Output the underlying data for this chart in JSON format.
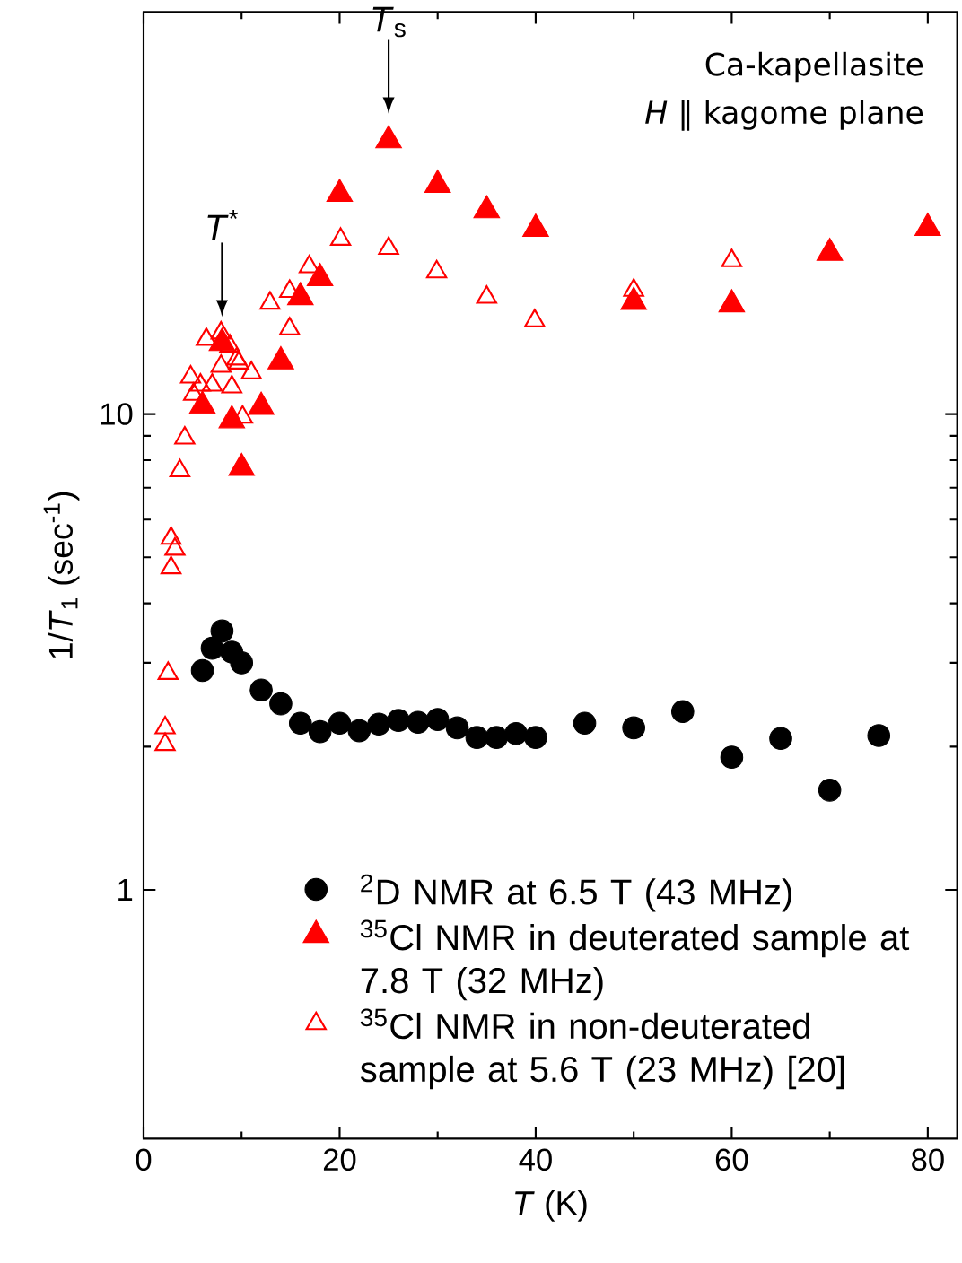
{
  "chart_data": {
    "type": "scatter",
    "xlabel": "*T*  (K)",
    "ylabel": "1/*T*$_{1}$  (sec$^{-1}$)",
    "xlim": [
      0,
      83
    ],
    "ylim": [
      0.3,
      70
    ],
    "xticks": [
      0,
      20,
      40,
      60,
      80
    ],
    "yticks": [
      1,
      10
    ],
    "log": "y",
    "legend": "bottom",
    "annotations": [
      {
        "text": "*T*$^{*}$",
        "x": 8,
        "y": 14.1
      },
      {
        "text": "*T*$_{s}$",
        "x": 25,
        "y": 37.6
      },
      "Ca-kapellasite",
      "*H* ‖ kagome plane"
    ],
    "series": [
      {
        "name": "$^{2}$D NMR at 6.5 T (43 MHz)",
        "color": "#000000",
        "marker": "circle",
        "x": [
          6,
          7,
          8,
          9,
          10,
          12,
          14,
          16,
          18,
          20,
          22,
          24,
          26,
          28,
          30,
          32,
          34,
          36,
          38,
          40,
          45,
          50,
          55,
          60,
          65,
          70,
          75
        ],
        "values": [
          2.89,
          3.22,
          3.5,
          3.16,
          3.0,
          2.63,
          2.46,
          2.24,
          2.15,
          2.24,
          2.16,
          2.23,
          2.27,
          2.25,
          2.28,
          2.19,
          2.09,
          2.09,
          2.13,
          2.09,
          2.24,
          2.19,
          2.37,
          1.9,
          2.08,
          1.62,
          2.11
        ]
      },
      {
        "name": "$^{35}$Cl NMR in deuterated sample at 7.8 T (32 MHz)",
        "color": "#ff0000",
        "marker": "triangle",
        "x": [
          6,
          8,
          9,
          10,
          12,
          14,
          16,
          18,
          20,
          25,
          30,
          35,
          40,
          50,
          60,
          70,
          80
        ],
        "values": [
          10.4,
          14.1,
          9.7,
          7.7,
          10.35,
          12.9,
          17.6,
          19.3,
          29.0,
          37.6,
          30.3,
          26.8,
          24.5,
          17.2,
          17.0,
          21.8,
          24.6
        ]
      },
      {
        "name": "$^{35}$Cl NMR in non-deuterated sample at 5.6 T (23 MHz) [20]",
        "color": "#ff0000",
        "marker": "triangle-open",
        "x": [
          2.2,
          2.2,
          2.5,
          2.8,
          3.2,
          2.8,
          3.7,
          4.2,
          4.8,
          5.1,
          5.8,
          6.4,
          7.0,
          7.9,
          7.9,
          8.8,
          9.0,
          9.5,
          9.7,
          10.1,
          11.0,
          12.9,
          14.9,
          14.9,
          16.9,
          20.1,
          25,
          29.9,
          35,
          39.9,
          50,
          60
        ],
        "values": [
          2.02,
          2.19,
          2.85,
          4.75,
          5.2,
          5.48,
          7.6,
          8.9,
          11.96,
          11.0,
          11.5,
          14.35,
          11.5,
          12.6,
          14.8,
          13.9,
          11.4,
          13.05,
          12.8,
          9.85,
          12.2,
          17.1,
          15.1,
          18.1,
          20.4,
          23.3,
          22.3,
          19.9,
          17.6,
          15.7,
          18.2,
          21.0
        ]
      }
    ]
  }
}
